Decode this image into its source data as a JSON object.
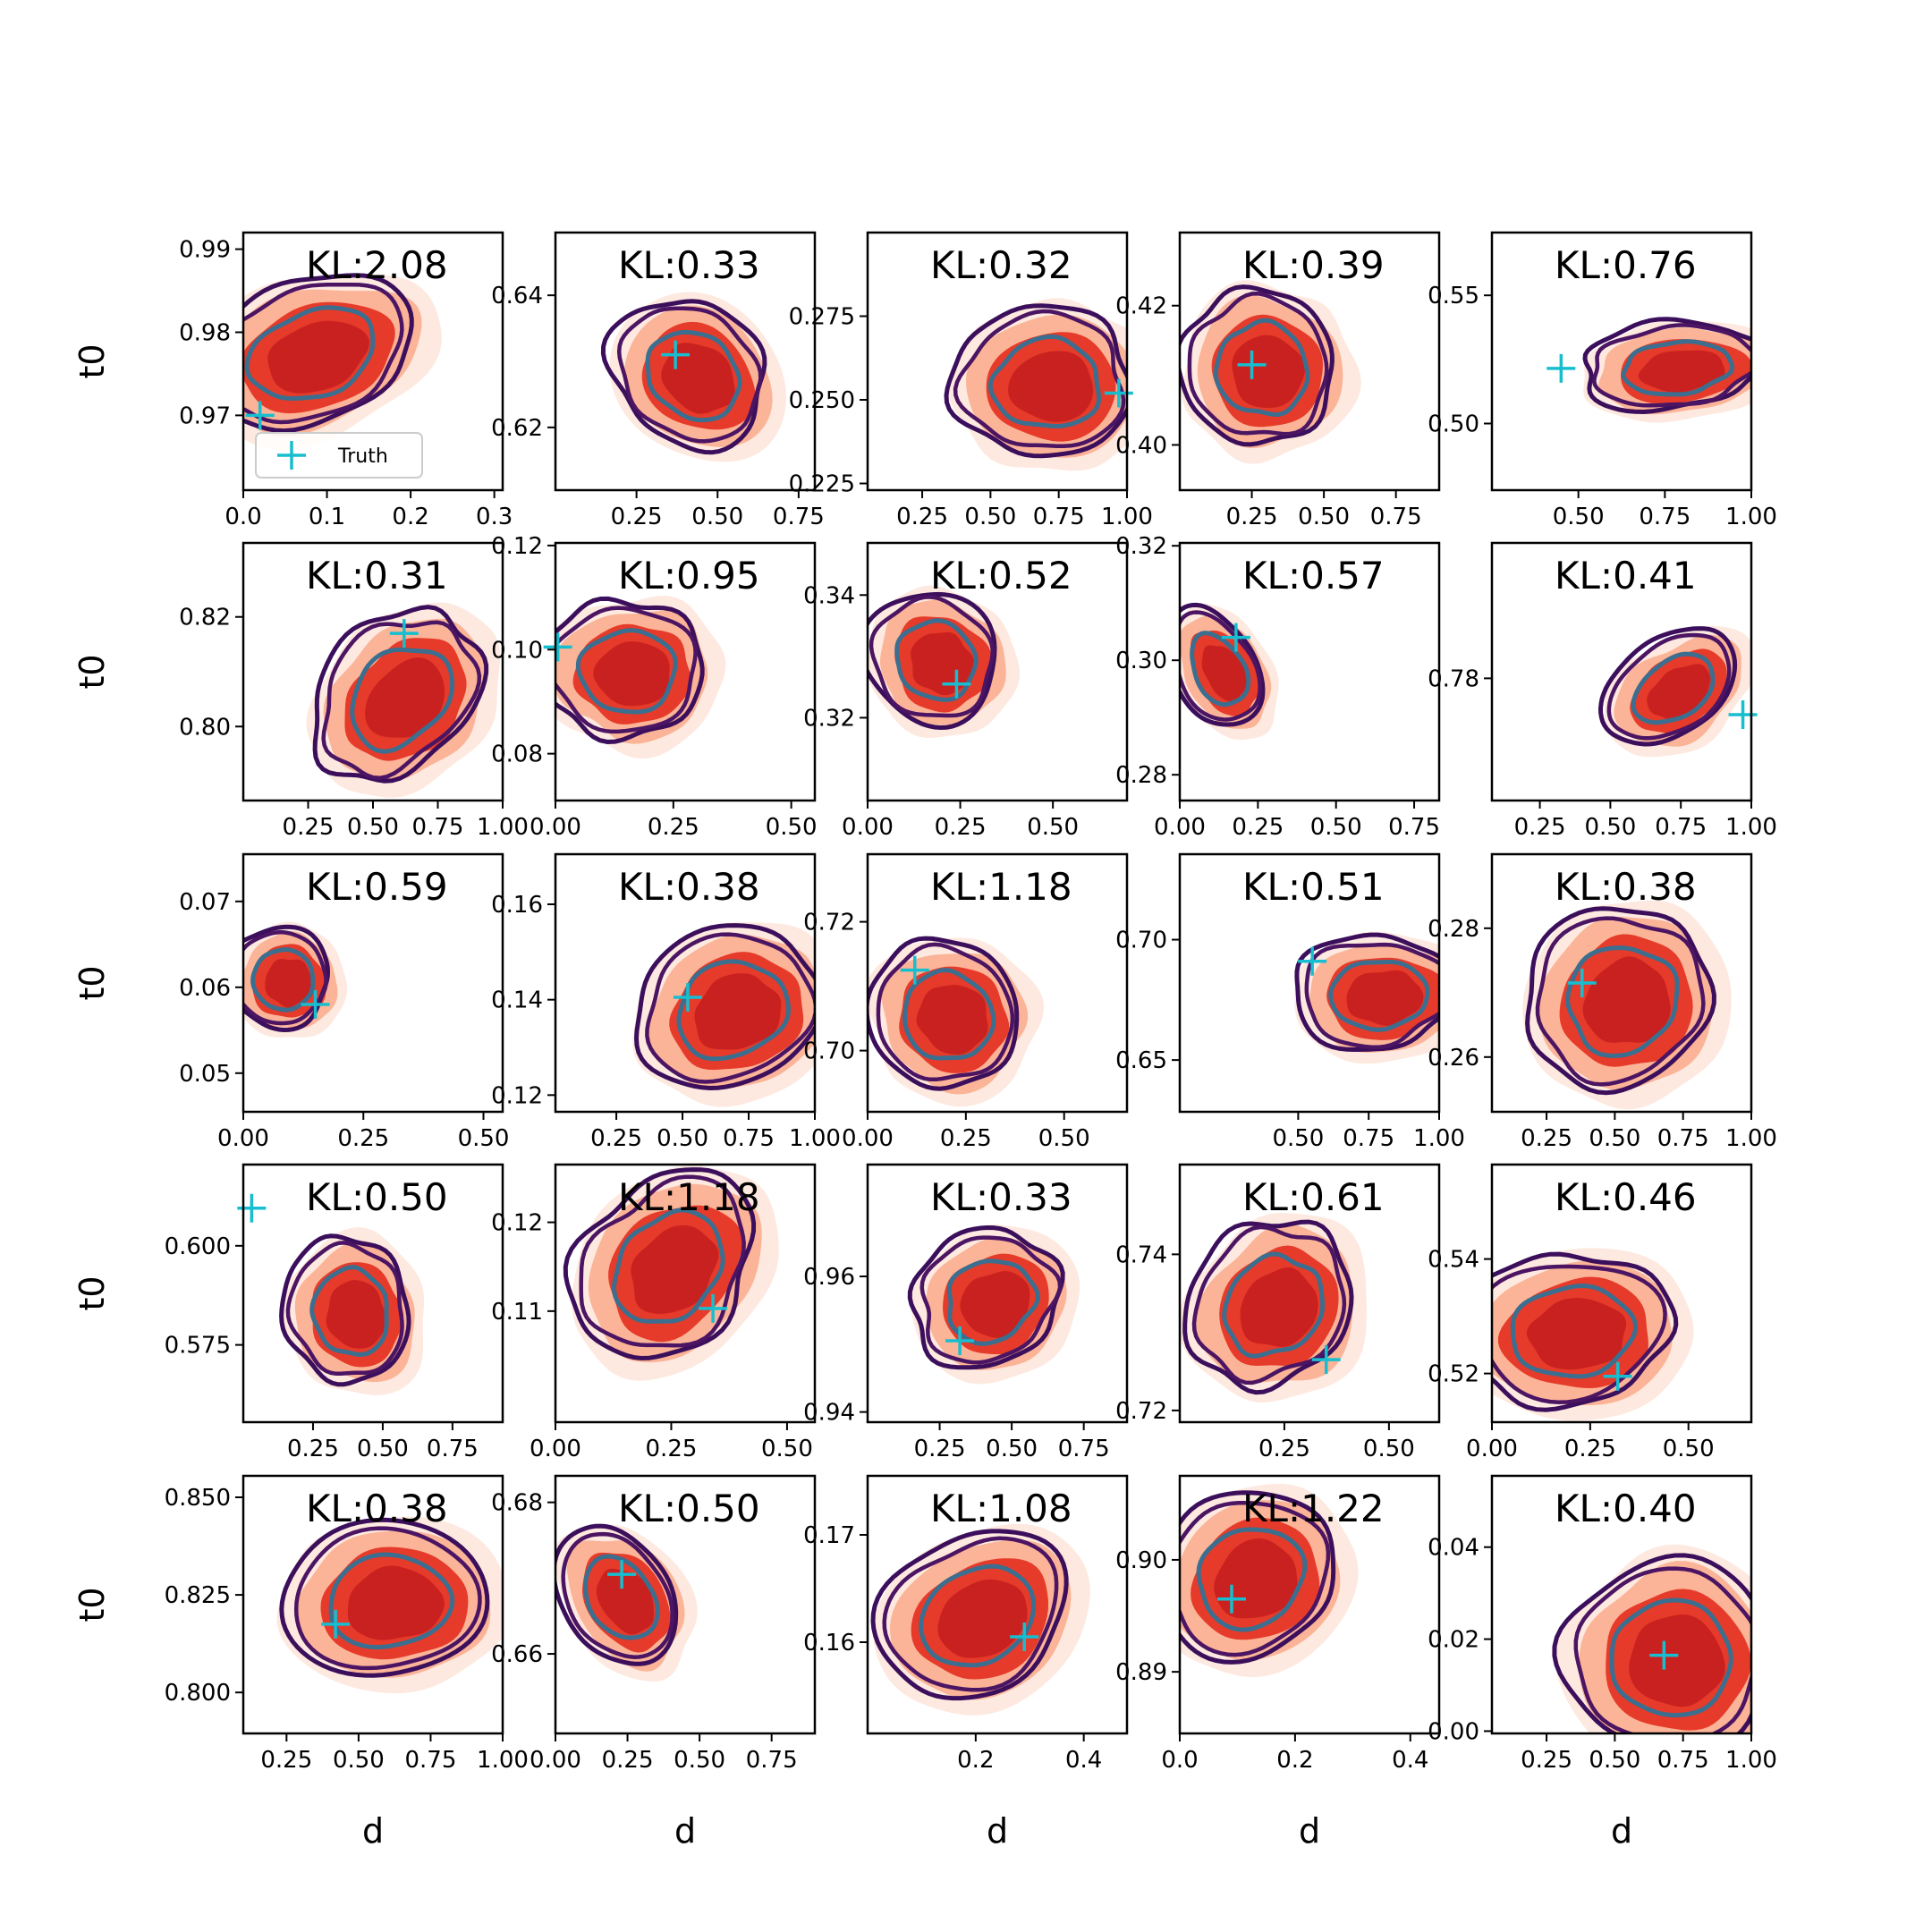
{
  "figure": {
    "xlabel": "d",
    "ylabel": "t0",
    "legend_label": "Truth",
    "colors": {
      "filled_levels": [
        "#fde9df",
        "#fbb497",
        "#e63b2a",
        "#c9211f"
      ],
      "outer_contour": "#3b0f5c",
      "mid_contour": "#4b1563",
      "inner_contour": "#3b6e8f",
      "truth_marker": "#17becf",
      "frame": "#000000"
    }
  },
  "chart_data": [
    {
      "type": "scatter",
      "panel": "r1c1",
      "kl": "KL:2.08",
      "xticks": [
        "0.0",
        "0.1",
        "0.2",
        "0.3"
      ],
      "yticks": [
        "0.97",
        "0.98",
        "0.99"
      ],
      "xlim": [
        0,
        0.31
      ],
      "ylim": [
        0.961,
        0.992
      ],
      "density": {
        "center": [
          0.08,
          0.9775
        ],
        "half_width": [
          0.1,
          0.0065
        ],
        "tilt": -0.35
      },
      "truth": [
        0.02,
        0.97
      ],
      "legend": true
    },
    {
      "type": "scatter",
      "panel": "r1c2",
      "kl": "KL:0.33",
      "xticks": [
        "0.25",
        "0.50",
        "0.75"
      ],
      "yticks": [
        "0.62",
        "0.64"
      ],
      "xlim": [
        0,
        0.8
      ],
      "ylim": [
        0.6105,
        0.6495
      ],
      "density": {
        "center": [
          0.42,
          0.628
        ],
        "half_width": [
          0.16,
          0.0095
        ],
        "tilt": -0.9
      },
      "truth": [
        0.37,
        0.631
      ]
    },
    {
      "type": "scatter",
      "panel": "r1c3",
      "kl": "KL:0.32",
      "xticks": [
        "0.25",
        "0.50",
        "0.75",
        "1.00"
      ],
      "yticks": [
        "0.225",
        "0.250",
        "0.275"
      ],
      "xlim": [
        0.05,
        1
      ],
      "ylim": [
        0.223,
        0.3
      ],
      "density": {
        "center": [
          0.7,
          0.255
        ],
        "half_width": [
          0.25,
          0.017
        ],
        "tilt": 0
      },
      "truth": [
        0.97,
        0.252
      ]
    },
    {
      "type": "scatter",
      "panel": "r1c4",
      "kl": "KL:0.39",
      "xticks": [
        "0.25",
        "0.50",
        "0.75"
      ],
      "yticks": [
        "0.40",
        "0.42"
      ],
      "xlim": [
        0,
        0.9
      ],
      "ylim": [
        0.3935,
        0.4305
      ],
      "density": {
        "center": [
          0.28,
          0.411
        ],
        "half_width": [
          0.2,
          0.0085
        ],
        "tilt": -0.6
      },
      "truth": [
        0.25,
        0.4115
      ]
    },
    {
      "type": "scatter",
      "panel": "r1c5",
      "kl": "KL:0.76",
      "xticks": [
        "0.50",
        "0.75",
        "1.00"
      ],
      "yticks": [
        "0.50",
        "0.55"
      ],
      "xlim": [
        0.25,
        1
      ],
      "ylim": [
        0.474,
        0.5745
      ],
      "density": {
        "center": [
          0.78,
          0.522
        ],
        "half_width": [
          0.2,
          0.013
        ],
        "tilt": -0.1
      },
      "truth": [
        0.45,
        0.5215
      ]
    },
    {
      "type": "scatter",
      "panel": "r2c1",
      "kl": "KL:0.31",
      "xticks": [
        "0.25",
        "0.50",
        "0.75",
        "1.00"
      ],
      "yticks": [
        "0.80",
        "0.82"
      ],
      "xlim": [
        0,
        1
      ],
      "ylim": [
        0.7865,
        0.8335
      ],
      "density": {
        "center": [
          0.6,
          0.8055
        ],
        "half_width": [
          0.28,
          0.01
        ],
        "tilt": -0.8
      },
      "truth": [
        0.62,
        0.817
      ]
    },
    {
      "type": "scatter",
      "panel": "r2c2",
      "kl": "KL:0.95",
      "xticks": [
        "0.00",
        "0.25",
        "0.50"
      ],
      "yticks": [
        "0.08",
        "0.10",
        "0.12"
      ],
      "xlim": [
        0,
        0.55
      ],
      "ylim": [
        0.071,
        0.1205
      ],
      "density": {
        "center": [
          0.15,
          0.096
        ],
        "half_width": [
          0.13,
          0.01
        ],
        "tilt": 0
      },
      "truth": [
        0.005,
        0.1005
      ]
    },
    {
      "type": "scatter",
      "panel": "r2c3",
      "kl": "KL:0.52",
      "xticks": [
        "0.00",
        "0.25",
        "0.50"
      ],
      "yticks": [
        "0.32",
        "0.34"
      ],
      "xlim": [
        0,
        0.7
      ],
      "ylim": [
        0.3065,
        0.3485
      ],
      "density": {
        "center": [
          0.18,
          0.3295
        ],
        "half_width": [
          0.13,
          0.0085
        ],
        "tilt": -0.8
      },
      "truth": [
        0.24,
        0.3255
      ]
    },
    {
      "type": "scatter",
      "panel": "r2c4",
      "kl": "KL:0.57",
      "xticks": [
        "0.00",
        "0.25",
        "0.50",
        "0.75"
      ],
      "yticks": [
        "0.28",
        "0.30",
        "0.32"
      ],
      "xlim": [
        0,
        0.83
      ],
      "ylim": [
        0.2755,
        0.3205
      ],
      "density": {
        "center": [
          0.12,
          0.2985
        ],
        "half_width": [
          0.1,
          0.0085
        ],
        "tilt": -0.5
      },
      "truth": [
        0.18,
        0.304
      ]
    },
    {
      "type": "scatter",
      "panel": "r2c5",
      "kl": "KL:0.41",
      "xticks": [
        "0.25",
        "0.50",
        "0.75",
        "1.00"
      ],
      "yticks": [
        "0.78"
      ],
      "xlim": [
        0.08,
        1
      ],
      "ylim": [
        0.7615,
        0.8005
      ],
      "density": {
        "center": [
          0.72,
          0.7785
        ],
        "half_width": [
          0.2,
          0.0055
        ],
        "tilt": -0.6
      },
      "truth": [
        0.97,
        0.7745
      ]
    },
    {
      "type": "scatter",
      "panel": "r3c1",
      "kl": "KL:0.59",
      "xticks": [
        "0.00",
        "0.25",
        "0.50"
      ],
      "yticks": [
        "0.05",
        "0.06",
        "0.07"
      ],
      "xlim": [
        0,
        0.54
      ],
      "ylim": [
        0.0455,
        0.0755
      ],
      "density": {
        "center": [
          0.08,
          0.061
        ],
        "half_width": [
          0.08,
          0.0045
        ],
        "tilt": -0.8
      },
      "truth": [
        0.15,
        0.058
      ]
    },
    {
      "type": "scatter",
      "panel": "r3c2",
      "kl": "KL:0.38",
      "xticks": [
        "0.25",
        "0.50",
        "0.75",
        "1.00"
      ],
      "yticks": [
        "0.12",
        "0.14",
        "0.16"
      ],
      "xlim": [
        0.02,
        1
      ],
      "ylim": [
        0.1165,
        0.1705
      ],
      "density": {
        "center": [
          0.68,
          0.138
        ],
        "half_width": [
          0.27,
          0.0125
        ],
        "tilt": -0.4
      },
      "truth": [
        0.52,
        0.1405
      ]
    },
    {
      "type": "scatter",
      "panel": "r3c3",
      "kl": "KL:1.18",
      "xticks": [
        "0.00",
        "0.25",
        "0.50"
      ],
      "yticks": [
        "0.70",
        "0.72"
      ],
      "xlim": [
        0,
        0.66
      ],
      "ylim": [
        0.6905,
        0.7305
      ],
      "density": {
        "center": [
          0.2,
          0.7055
        ],
        "half_width": [
          0.14,
          0.009
        ],
        "tilt": -0.9
      },
      "truth": [
        0.12,
        0.7125
      ]
    },
    {
      "type": "scatter",
      "panel": "r3c4",
      "kl": "KL:0.51",
      "xticks": [
        "0.50",
        "0.75",
        "1.00"
      ],
      "yticks": [
        "0.65",
        "0.70"
      ],
      "xlim": [
        0.08,
        1
      ],
      "ylim": [
        0.6285,
        0.7355
      ],
      "density": {
        "center": [
          0.78,
          0.6775
        ],
        "half_width": [
          0.22,
          0.018
        ],
        "tilt": -0.05
      },
      "truth": [
        0.55,
        0.691
      ]
    },
    {
      "type": "scatter",
      "panel": "r3c5",
      "kl": "KL:0.38",
      "xticks": [
        "0.25",
        "0.50",
        "0.75",
        "1.00"
      ],
      "yticks": [
        "0.26",
        "0.28"
      ],
      "xlim": [
        0.05,
        1
      ],
      "ylim": [
        0.2515,
        0.2915
      ],
      "density": {
        "center": [
          0.52,
          0.269
        ],
        "half_width": [
          0.26,
          0.0105
        ],
        "tilt": -0.7
      },
      "truth": [
        0.38,
        0.2715
      ]
    },
    {
      "type": "scatter",
      "panel": "r4c1",
      "kl": "KL:0.50",
      "xticks": [
        "0.25",
        "0.50",
        "0.75"
      ],
      "yticks": [
        "0.575",
        "0.600"
      ],
      "xlim": [
        0,
        0.93
      ],
      "ylim": [
        0.5555,
        0.6205
      ],
      "density": {
        "center": [
          0.38,
          0.5835
        ],
        "half_width": [
          0.17,
          0.014
        ],
        "tilt": -0.2
      },
      "truth": [
        0.03,
        0.6095
      ]
    },
    {
      "type": "scatter",
      "panel": "r4c2",
      "kl": "KL:1.18",
      "xticks": [
        "0.00",
        "0.25",
        "0.50"
      ],
      "yticks": [
        "0.11",
        "0.12"
      ],
      "xlim": [
        0,
        0.56
      ],
      "ylim": [
        0.0975,
        0.1265
      ],
      "density": {
        "center": [
          0.24,
          0.115
        ],
        "half_width": [
          0.17,
          0.0068
        ],
        "tilt": -0.85
      },
      "truth": [
        0.34,
        0.1103
      ]
    },
    {
      "type": "scatter",
      "panel": "r4c3",
      "kl": "KL:0.33",
      "xticks": [
        "0.25",
        "0.50",
        "0.75"
      ],
      "yticks": [
        "0.94",
        "0.96"
      ],
      "xlim": [
        0,
        0.9
      ],
      "ylim": [
        0.9385,
        0.9765
      ],
      "density": {
        "center": [
          0.42,
          0.9565
        ],
        "half_width": [
          0.2,
          0.0075
        ],
        "tilt": -0.55
      },
      "truth": [
        0.32,
        0.9505
      ]
    },
    {
      "type": "scatter",
      "panel": "r4c4",
      "kl": "KL:0.61",
      "xticks": [
        "0.25",
        "0.50"
      ],
      "yticks": [
        "0.72",
        "0.74"
      ],
      "xlim": [
        0,
        0.62
      ],
      "ylim": [
        0.7185,
        0.7515
      ],
      "density": {
        "center": [
          0.22,
          0.7335
        ],
        "half_width": [
          0.16,
          0.0075
        ],
        "tilt": -0.8
      },
      "truth": [
        0.35,
        0.7265
      ]
    },
    {
      "type": "scatter",
      "panel": "r4c5",
      "kl": "KL:0.46",
      "xticks": [
        "0.00",
        "0.25",
        "0.50"
      ],
      "yticks": [
        "0.52",
        "0.54"
      ],
      "xlim": [
        0,
        0.66
      ],
      "ylim": [
        0.5115,
        0.5565
      ],
      "density": {
        "center": [
          0.2,
          0.5275
        ],
        "half_width": [
          0.2,
          0.01
        ],
        "tilt": -0.1
      },
      "truth": [
        0.32,
        0.5195
      ]
    },
    {
      "type": "scatter",
      "panel": "r5c1",
      "kl": "KL:0.38",
      "xticks": [
        "0.25",
        "0.50",
        "0.75",
        "1.00"
      ],
      "yticks": [
        "0.800",
        "0.825",
        "0.850"
      ],
      "xlim": [
        0.1,
        1
      ],
      "ylim": [
        0.7895,
        0.8555
      ],
      "density": {
        "center": [
          0.6,
          0.8235
        ],
        "half_width": [
          0.27,
          0.015
        ],
        "tilt": -0.1
      },
      "truth": [
        0.42,
        0.8175
      ]
    },
    {
      "type": "scatter",
      "panel": "r5c2",
      "kl": "KL:0.50",
      "xticks": [
        "0.00",
        "0.25",
        "0.50",
        "0.75"
      ],
      "yticks": [
        "0.66",
        "0.68"
      ],
      "xlim": [
        0,
        0.9
      ],
      "ylim": [
        0.6495,
        0.6835
      ],
      "density": {
        "center": [
          0.22,
          0.6675
        ],
        "half_width": [
          0.14,
          0.0075
        ],
        "tilt": -0.6
      },
      "truth": [
        0.23,
        0.6705
      ]
    },
    {
      "type": "scatter",
      "panel": "r5c3",
      "kl": "KL:1.08",
      "xticks": [
        "0.2",
        "0.4"
      ],
      "yticks": [
        "0.16",
        "0.17"
      ],
      "xlim": [
        0,
        0.48
      ],
      "ylim": [
        0.1515,
        0.1755
      ],
      "density": {
        "center": [
          0.2,
          0.1625
        ],
        "half_width": [
          0.14,
          0.0055
        ],
        "tilt": -0.5
      },
      "truth": [
        0.29,
        0.1605
      ]
    },
    {
      "type": "scatter",
      "panel": "r5c4",
      "kl": "KL:1.22",
      "xticks": [
        "0.0",
        "0.2",
        "0.4"
      ],
      "yticks": [
        "0.89",
        "0.90"
      ],
      "xlim": [
        0,
        0.45
      ],
      "ylim": [
        0.8845,
        0.9075
      ],
      "density": {
        "center": [
          0.12,
          0.8985
        ],
        "half_width": [
          0.12,
          0.0055
        ],
        "tilt": -0.6
      },
      "truth": [
        0.09,
        0.8965
      ]
    },
    {
      "type": "scatter",
      "panel": "r5c5",
      "kl": "KL:0.40",
      "xticks": [
        "0.25",
        "0.50",
        "0.75",
        "1.00"
      ],
      "yticks": [
        "0.00",
        "0.02",
        "0.04"
      ],
      "xlim": [
        0.05,
        1
      ],
      "ylim": [
        -0.0005,
        0.0555
      ],
      "density": {
        "center": [
          0.7,
          0.016
        ],
        "half_width": [
          0.28,
          0.016
        ],
        "tilt": 0
      },
      "truth": [
        0.68,
        0.0165
      ]
    }
  ]
}
